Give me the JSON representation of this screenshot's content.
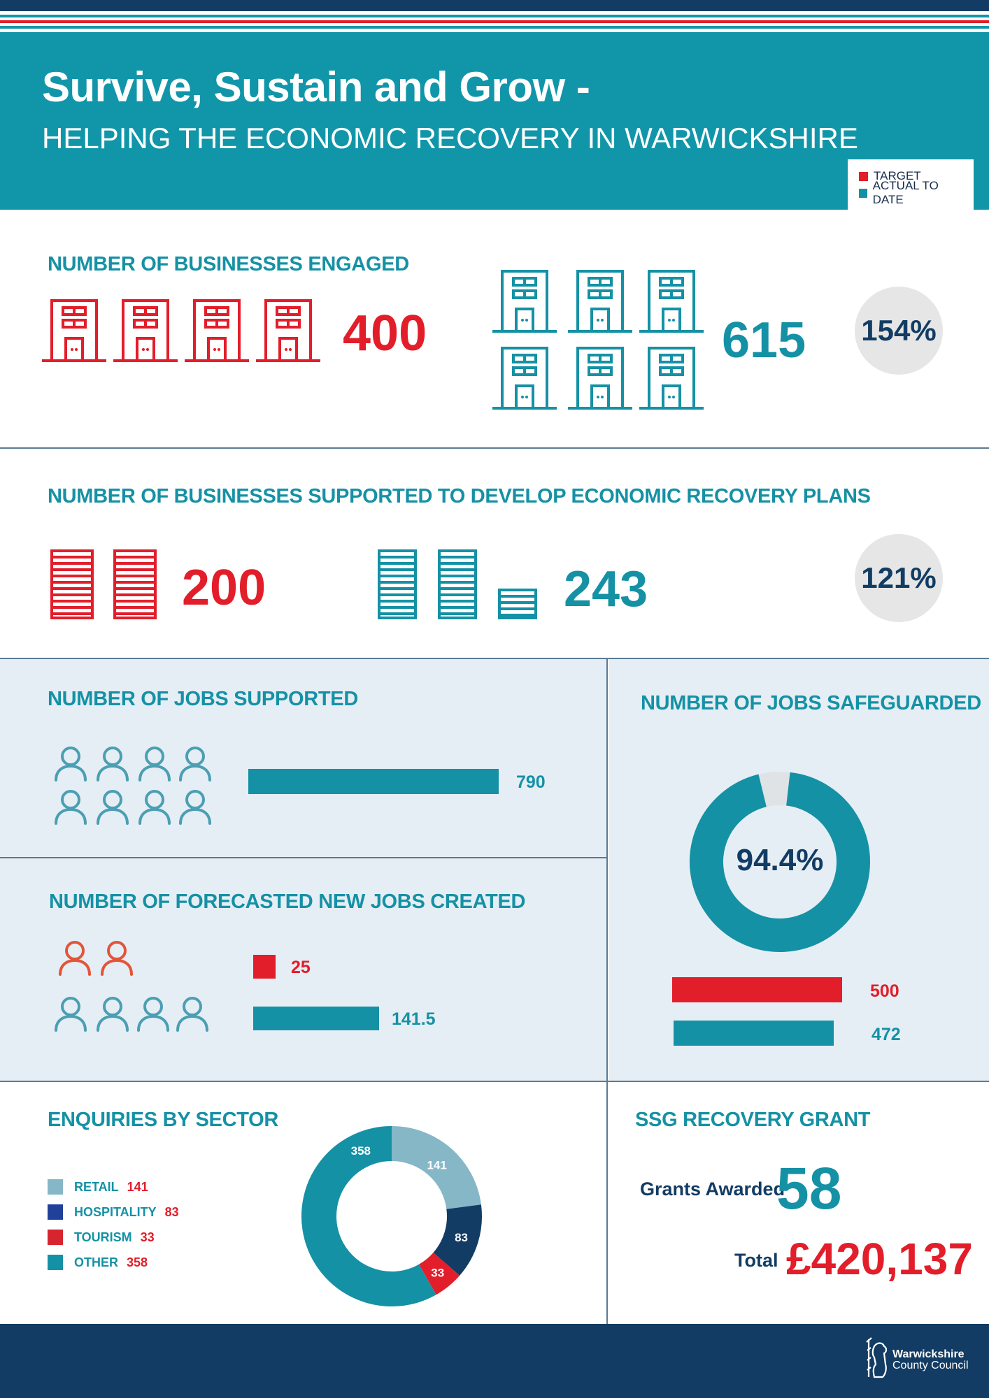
{
  "header": {
    "title": "Survive, Sustain and Grow -",
    "subtitle": "HELPING THE ECONOMIC RECOVERY IN WARWICKSHIRE",
    "legend": [
      {
        "label": "TARGET",
        "color": "#e21e2a"
      },
      {
        "label": "ACTUAL TO DATE",
        "color": "#1591a5"
      }
    ]
  },
  "colors": {
    "target": "#e21e2a",
    "actual": "#1591a5",
    "navy": "#123c63",
    "light_panel": "#e6eef5"
  },
  "engaged": {
    "title": "NUMBER OF BUSINESSES ENGAGED",
    "target": "400",
    "actual": "615",
    "percent": "154%"
  },
  "plans": {
    "title": "NUMBER OF BUSINESSES SUPPORTED TO DEVELOP ECONOMIC RECOVERY PLANS",
    "target": "200",
    "actual": "243",
    "percent": "121%"
  },
  "jobs_supported": {
    "title": "NUMBER OF JOBS SUPPORTED",
    "value": "790"
  },
  "jobs_forecast": {
    "title": "NUMBER OF FORECASTED NEW JOBS CREATED",
    "target": "25",
    "actual": "141.5"
  },
  "jobs_safeguarded": {
    "title": "NUMBER OF JOBS SAFEGUARDED",
    "percent": "94.4%",
    "target": "500",
    "actual": "472"
  },
  "sector": {
    "title": "ENQUIRIES BY SECTOR",
    "items": [
      {
        "label": "RETAIL",
        "value": "141",
        "color": "#86b7c7"
      },
      {
        "label": "HOSPITALITY",
        "value": "83",
        "color": "#21409a"
      },
      {
        "label": "TOURISM",
        "value": "33",
        "color": "#d72530"
      },
      {
        "label": "OTHER",
        "value": "358",
        "color": "#1591a5"
      }
    ]
  },
  "grant": {
    "title": "SSG RECOVERY GRANT",
    "awarded_label": "Grants Awarded",
    "awarded_value": "58",
    "total_label": "Total",
    "total_value": "£420,137"
  },
  "footer": {
    "logo_line1": "Warwickshire",
    "logo_line2": "County Council"
  },
  "chart_data": [
    {
      "type": "bar",
      "title": "NUMBER OF BUSINESSES ENGAGED",
      "series": [
        {
          "name": "TARGET",
          "values": [
            400
          ]
        },
        {
          "name": "ACTUAL TO DATE",
          "values": [
            615
          ]
        }
      ],
      "annotations": [
        "154%"
      ]
    },
    {
      "type": "bar",
      "title": "NUMBER OF BUSINESSES SUPPORTED TO DEVELOP ECONOMIC RECOVERY PLANS",
      "series": [
        {
          "name": "TARGET",
          "values": [
            200
          ]
        },
        {
          "name": "ACTUAL TO DATE",
          "values": [
            243
          ]
        }
      ],
      "annotations": [
        "121%"
      ]
    },
    {
      "type": "bar",
      "title": "NUMBER OF JOBS SUPPORTED",
      "series": [
        {
          "name": "ACTUAL TO DATE",
          "values": [
            790
          ]
        }
      ]
    },
    {
      "type": "bar",
      "title": "NUMBER OF FORECASTED NEW JOBS CREATED",
      "series": [
        {
          "name": "TARGET",
          "values": [
            25
          ]
        },
        {
          "name": "ACTUAL TO DATE",
          "values": [
            141.5
          ]
        }
      ]
    },
    {
      "type": "bar",
      "title": "NUMBER OF JOBS SAFEGUARDED",
      "series": [
        {
          "name": "TARGET",
          "values": [
            500
          ]
        },
        {
          "name": "ACTUAL TO DATE",
          "values": [
            472
          ]
        }
      ],
      "annotations": [
        "94.4%"
      ]
    },
    {
      "type": "pie",
      "title": "ENQUIRIES BY SECTOR",
      "categories": [
        "RETAIL",
        "HOSPITALITY",
        "TOURISM",
        "OTHER"
      ],
      "values": [
        141,
        83,
        33,
        358
      ]
    }
  ]
}
